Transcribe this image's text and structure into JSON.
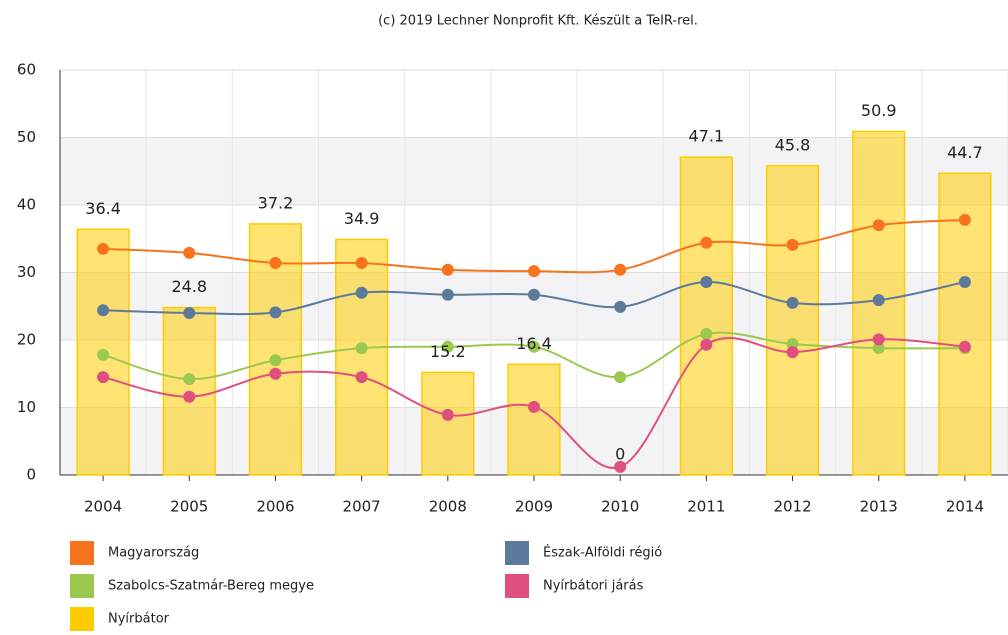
{
  "chart_data": {
    "type": "combo",
    "credit": "(c) 2019 Lechner Nonprofit Kft. Készült a TeIR-rel.",
    "categories": [
      "2004",
      "2005",
      "2006",
      "2007",
      "2008",
      "2009",
      "2010",
      "2011",
      "2012",
      "2013",
      "2014"
    ],
    "ylim": [
      0,
      60
    ],
    "yticks": [
      0,
      10,
      20,
      30,
      40,
      50,
      60
    ],
    "grid": true,
    "series": [
      {
        "name": "Magyarország",
        "type": "line",
        "color": "#f7731e",
        "values": [
          33.5,
          32.9,
          31.4,
          31.4,
          30.4,
          30.2,
          30.4,
          34.4,
          34.1,
          37.0,
          37.8
        ]
      },
      {
        "name": "Észak-Alföldi régió",
        "type": "line",
        "color": "#5c7a9c",
        "values": [
          24.4,
          24.0,
          24.1,
          27.0,
          26.7,
          26.7,
          24.9,
          28.6,
          25.5,
          25.9,
          28.6
        ]
      },
      {
        "name": "Szabolcs-Szatmár-Bereg megye",
        "type": "line",
        "color": "#9bc94f",
        "values": [
          17.8,
          14.2,
          17.0,
          18.8,
          19.0,
          19.0,
          14.5,
          20.9,
          19.4,
          18.8,
          18.8
        ]
      },
      {
        "name": "Nyírbátori járás",
        "type": "line",
        "color": "#e0507e",
        "values": [
          14.5,
          11.6,
          15.0,
          14.5,
          8.9,
          10.1,
          1.2,
          19.3,
          18.2,
          20.1,
          19.0
        ]
      },
      {
        "name": "Nyírbátor",
        "type": "bar",
        "color": "#ffcc00",
        "values": [
          36.4,
          24.8,
          37.2,
          34.9,
          15.2,
          16.4,
          0,
          47.1,
          45.8,
          50.9,
          44.7
        ]
      }
    ]
  }
}
